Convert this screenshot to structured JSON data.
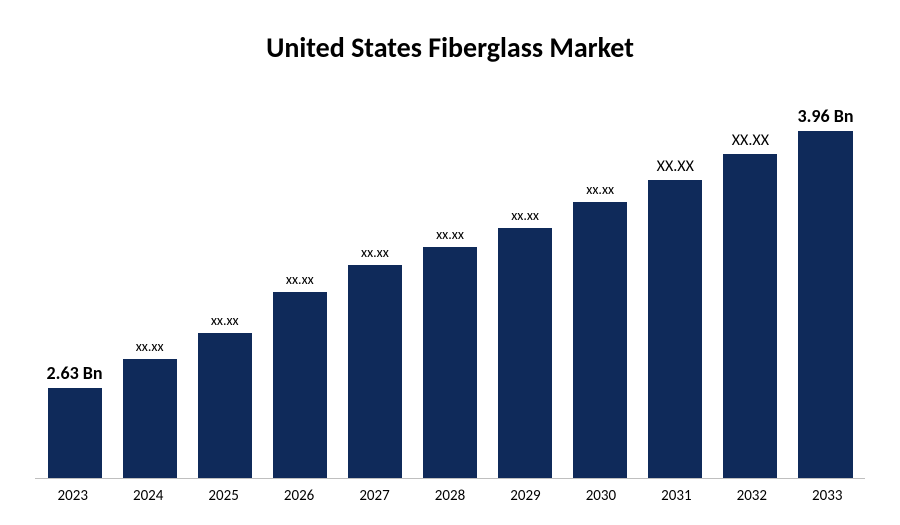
{
  "chart": {
    "type": "bar",
    "title": "United States Fiberglass Market",
    "title_fontsize": 28,
    "title_fontweight": 700,
    "title_color": "#000000",
    "background_color": "#ffffff",
    "bar_color": "#0f2a5a",
    "axis_line_color": "#bfbfbf",
    "categories": [
      "2023",
      "2024",
      "2025",
      "2026",
      "2027",
      "2028",
      "2029",
      "2030",
      "2031",
      "2032",
      "2033"
    ],
    "values_pct": [
      24,
      32,
      39,
      50,
      57,
      62,
      67,
      74,
      80,
      87,
      94
    ],
    "value_labels": [
      "2.63 Bn",
      "xx.xx",
      "xx.xx",
      "xx.xx",
      "xx.xx",
      "xx.xx",
      "xx.xx",
      "xx.xx",
      "XX.XX",
      "XX.XX",
      "3.96 Bn"
    ],
    "label_bold_flags": [
      true,
      false,
      false,
      false,
      false,
      false,
      false,
      false,
      false,
      false,
      true
    ],
    "label_font_sizes": [
      18,
      14,
      14,
      14,
      14,
      14,
      14,
      14,
      16,
      16,
      18
    ],
    "x_label_fontsize": 15,
    "bar_width_pct": 72
  }
}
